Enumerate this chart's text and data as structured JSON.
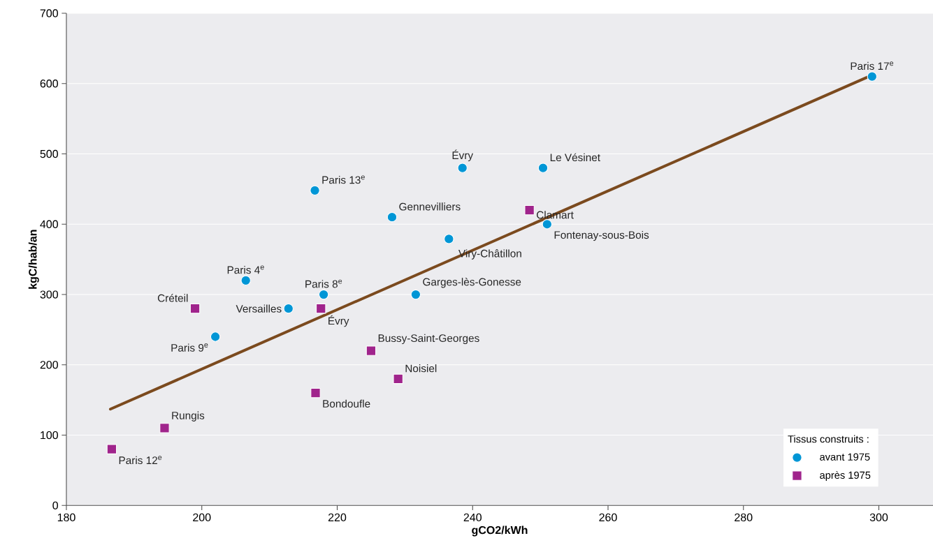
{
  "chart_data": {
    "type": "scatter",
    "xlabel": "gCO2/kWh",
    "ylabel": "kgC/hab/an",
    "legend_title": "Tissus construits :",
    "xlim": [
      180,
      308
    ],
    "ylim": [
      0,
      700
    ],
    "xticks": [
      180,
      200,
      220,
      240,
      260,
      280,
      300
    ],
    "yticks": [
      0,
      100,
      200,
      300,
      400,
      500,
      600,
      700
    ],
    "grid": "y",
    "legend": "bottom right",
    "series": [
      {
        "name": "avant 1975",
        "marker": "circle",
        "color": "#0096d6",
        "x": [
          299,
          238.5,
          250.4,
          216.7,
          228.1,
          251,
          236.5,
          206.5,
          218,
          231.6,
          212.8,
          202
        ],
        "values": [
          610,
          480,
          480,
          448,
          410,
          400,
          379,
          320,
          300,
          300,
          280,
          240
        ]
      },
      {
        "name": "après 1975",
        "marker": "square",
        "color": "#a0248c",
        "x": [
          248.4,
          199,
          217.6,
          225,
          229,
          216.8,
          194.5,
          186.7
        ],
        "values": [
          420,
          280,
          280,
          220,
          180,
          160,
          110,
          80
        ]
      },
      {
        "type": "line",
        "marker": "none",
        "line_style": "solid",
        "color": "#7b4a1e",
        "x": [
          186.5,
          299
        ],
        "values": [
          137,
          612
        ]
      }
    ],
    "annotations": [
      {
        "text": "Paris 17$^{e}$",
        "x": 299,
        "y": 610
      },
      {
        "text": "Évry",
        "x": 238.5,
        "y": 480
      },
      {
        "text": "Le Vésinet",
        "x": 250.4,
        "y": 480
      },
      {
        "text": "Paris 13$^{e}$",
        "x": 216.7,
        "y": 448
      },
      {
        "text": "Gennevilliers",
        "x": 228.1,
        "y": 410
      },
      {
        "text": "Clamart",
        "x": 248.4,
        "y": 420
      },
      {
        "text": "Fontenay-sous-Bois",
        "x": 251,
        "y": 400
      },
      {
        "text": "Viry-Châtillon",
        "x": 236.5,
        "y": 379
      },
      {
        "text": "Paris 4$^{e}$",
        "x": 206.5,
        "y": 320
      },
      {
        "text": "Paris 8$^{e}$",
        "x": 218,
        "y": 300
      },
      {
        "text": "Garges-lès-Gonesse",
        "x": 231.6,
        "y": 300
      },
      {
        "text": "Créteil",
        "x": 199,
        "y": 280
      },
      {
        "text": "Versailles",
        "x": 212.8,
        "y": 280
      },
      {
        "text": "Évry",
        "x": 217.6,
        "y": 280
      },
      {
        "text": "Paris 9$^{e}$",
        "x": 202,
        "y": 240
      },
      {
        "text": "Bussy-Saint-Georges",
        "x": 225,
        "y": 220
      },
      {
        "text": "Noisiel",
        "x": 229,
        "y": 180
      },
      {
        "text": "Bondoufle",
        "x": 216.8,
        "y": 160
      },
      {
        "text": "Rungis",
        "x": 194.5,
        "y": 110
      },
      {
        "text": "Paris 12$^{e}$",
        "x": 186.7,
        "y": 80
      }
    ]
  }
}
